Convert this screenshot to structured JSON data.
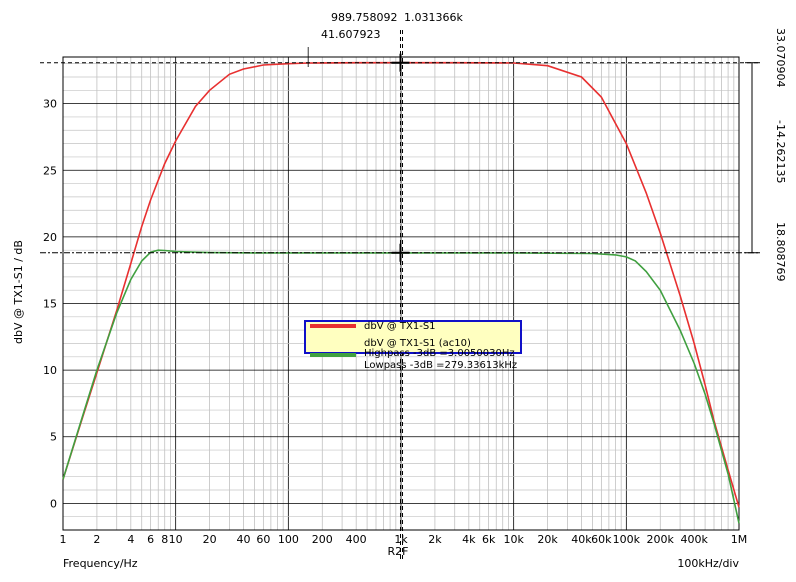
{
  "chart_data": {
    "type": "line",
    "xscale": "log",
    "xlim": [
      1,
      1000000
    ],
    "ylim": [
      -2,
      33.5
    ],
    "xlabel": "Frequency/Hz",
    "ylabel": "dbV @ TX1-S1 / dB",
    "x_ticks": [
      {
        "v": 1,
        "label": "1"
      },
      {
        "v": 2,
        "label": "2"
      },
      {
        "v": 4,
        "label": "4"
      },
      {
        "v": 6,
        "label": "6"
      },
      {
        "v": 8,
        "label": "8"
      },
      {
        "v": 10,
        "label": "10"
      },
      {
        "v": 20,
        "label": "20"
      },
      {
        "v": 40,
        "label": "40"
      },
      {
        "v": 60,
        "label": "60"
      },
      {
        "v": 100,
        "label": "100"
      },
      {
        "v": 200,
        "label": "200"
      },
      {
        "v": 400,
        "label": "400"
      },
      {
        "v": 1000,
        "label": "1k"
      },
      {
        "v": 2000,
        "label": "2k"
      },
      {
        "v": 4000,
        "label": "4k"
      },
      {
        "v": 6000,
        "label": "6k"
      },
      {
        "v": 10000,
        "label": "10k"
      },
      {
        "v": 20000,
        "label": "20k"
      },
      {
        "v": 40000,
        "label": "40k"
      },
      {
        "v": 60000,
        "label": "60k"
      },
      {
        "v": 100000,
        "label": "100k"
      },
      {
        "v": 200000,
        "label": "200k"
      },
      {
        "v": 400000,
        "label": "400k"
      },
      {
        "v": 1000000,
        "label": "1M"
      }
    ],
    "y_ticks": [
      0,
      5,
      10,
      15,
      20,
      25,
      30
    ],
    "series": [
      {
        "name": "dbV @ TX1-S1",
        "color": "#e83030",
        "x": [
          1,
          1.5,
          2,
          3,
          4,
          5,
          6,
          8,
          10,
          15,
          20,
          30,
          40,
          60,
          100,
          150,
          200,
          400,
          1000,
          3000,
          10000,
          20000,
          40000,
          60000,
          100000,
          150000,
          200000,
          300000,
          400000,
          500000,
          600000,
          800000,
          1000000
        ],
        "y": [
          1.8,
          6.5,
          9.8,
          14.5,
          18.0,
          20.8,
          22.8,
          25.5,
          27.2,
          29.8,
          31.0,
          32.2,
          32.6,
          32.9,
          33.0,
          33.05,
          33.06,
          33.07,
          33.07,
          33.07,
          33.05,
          32.85,
          32.0,
          30.5,
          27.0,
          23.3,
          20.3,
          15.6,
          12.0,
          8.9,
          6.2,
          2.5,
          -0.3
        ]
      },
      {
        "name": "dbV @ TX1-S1 (ac10)",
        "color": "#40a040",
        "x": [
          1,
          1.5,
          2,
          3,
          4,
          5,
          6,
          7,
          8,
          10,
          15,
          20,
          50,
          100,
          1000,
          10000,
          50000,
          80000,
          100000,
          120000,
          150000,
          200000,
          300000,
          400000,
          500000,
          600000,
          800000,
          1000000
        ],
        "y": [
          1.8,
          6.6,
          10.0,
          14.3,
          16.8,
          18.2,
          18.85,
          19.0,
          18.98,
          18.9,
          18.85,
          18.82,
          18.8,
          18.8,
          18.8,
          18.8,
          18.75,
          18.65,
          18.5,
          18.2,
          17.4,
          16.0,
          13.0,
          10.5,
          8.2,
          6.0,
          2.2,
          -1.5
        ]
      }
    ],
    "cursor_readouts": {
      "x_value": "989.758092",
      "x_value_2": "1.031366k",
      "x_delta": "41.607923",
      "y_high": "33.070904",
      "y_diff": "-14.262135",
      "y_low": "18.808769",
      "cursor_label": "R2F"
    },
    "legend_notes": [
      "Highpass -3dB =3.0050030Hz",
      "Lowpass -3dB =279.33613kHz"
    ],
    "div_label": "100kHz/div"
  }
}
